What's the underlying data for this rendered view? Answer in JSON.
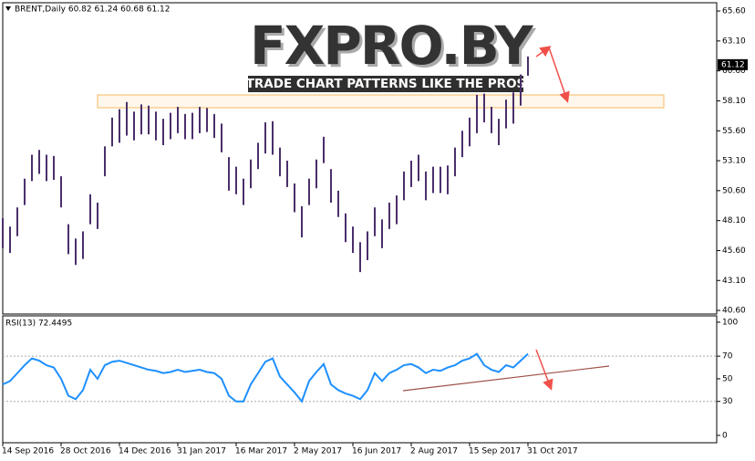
{
  "watermark": {
    "logo": "FXPRO.BY",
    "tagline": "TRADE CHART PATTERNS LIKE THE PROS"
  },
  "chart_data": [
    {
      "type": "ohlc",
      "title": "BRENT,Daily  60.82 61.24 60.68 61.12",
      "color": "#4a2f6b",
      "categories": [
        "14 Sep 2016",
        null,
        null,
        null,
        null,
        null,
        null,
        null,
        "28 Oct 2016",
        null,
        null,
        null,
        null,
        null,
        null,
        null,
        "14 Dec 2016",
        null,
        null,
        null,
        null,
        null,
        null,
        null,
        "31 Jan 2017",
        null,
        null,
        null,
        null,
        null,
        null,
        null,
        "16 Mar 2017",
        null,
        null,
        null,
        null,
        null,
        null,
        null,
        "2 May 2017",
        null,
        null,
        null,
        null,
        null,
        null,
        null,
        "16 Jun 2017",
        null,
        null,
        null,
        null,
        null,
        null,
        null,
        "2 Aug 2017",
        null,
        null,
        null,
        null,
        null,
        null,
        null,
        "15 Sep 2017",
        null,
        null,
        null,
        null,
        null,
        null,
        null,
        "31 Oct 2017"
      ],
      "high": [
        48.3,
        47.6,
        49.2,
        51.6,
        53.6,
        54.0,
        53.6,
        53.5,
        51.8,
        47.8,
        46.6,
        47.2,
        50.3,
        49.6,
        54.3,
        56.7,
        57.4,
        58.0,
        57.2,
        57.8,
        57.7,
        57.2,
        56.6,
        57.1,
        57.6,
        57.0,
        57.1,
        57.6,
        57.5,
        57.0,
        56.2,
        53.4,
        52.6,
        51.6,
        53.2,
        54.6,
        56.3,
        56.4,
        54.2,
        53.1,
        51.2,
        49.3,
        51.6,
        53.2,
        55.1,
        52.4,
        50.6,
        48.7,
        47.6,
        46.3,
        47.2,
        49.2,
        48.2,
        49.6,
        50.2,
        52.2,
        53.1,
        53.6,
        52.2,
        52.6,
        52.6,
        52.7,
        54.2,
        55.6,
        56.7,
        58.6,
        58.7,
        57.6,
        56.6,
        58.2,
        58.8,
        60.3,
        61.8
      ],
      "low": [
        45.8,
        45.4,
        46.8,
        49.4,
        51.4,
        52.0,
        51.4,
        51.5,
        49.2,
        45.3,
        44.4,
        44.9,
        47.8,
        47.4,
        51.8,
        54.3,
        54.6,
        55.2,
        54.8,
        55.3,
        55.3,
        54.8,
        54.4,
        54.9,
        55.4,
        54.9,
        54.9,
        55.4,
        55.5,
        55.0,
        53.8,
        50.6,
        50.3,
        49.4,
        50.8,
        52.4,
        53.7,
        53.6,
        51.8,
        50.9,
        48.8,
        46.7,
        49.4,
        50.8,
        52.9,
        49.6,
        48.4,
        46.3,
        45.4,
        43.8,
        44.8,
        46.8,
        45.8,
        47.4,
        47.8,
        49.8,
        50.9,
        51.4,
        49.8,
        50.4,
        50.4,
        50.3,
        51.8,
        53.4,
        54.3,
        55.4,
        56.3,
        55.4,
        54.4,
        55.8,
        56.2,
        57.7,
        60.2
      ],
      "ylim": [
        40.3,
        66.29
      ],
      "yticks": [
        {
          "value": 65.6,
          "label": "65.60"
        },
        {
          "value": 63.1,
          "label": "63.10"
        },
        {
          "value": 60.6,
          "label": "60.60"
        },
        {
          "value": 58.1,
          "label": "58.10"
        },
        {
          "value": 55.6,
          "label": "55.60"
        },
        {
          "value": 53.1,
          "label": "53.10"
        },
        {
          "value": 50.6,
          "label": "50.60"
        },
        {
          "value": 48.1,
          "label": "48.10"
        },
        {
          "value": 45.6,
          "label": "45.60"
        },
        {
          "value": 43.1,
          "label": "43.10"
        },
        {
          "value": 40.6,
          "label": "40.60"
        }
      ],
      "last_price": {
        "value": 61.12,
        "label": "61.12"
      }
    },
    {
      "type": "line",
      "title": "RSI(13) 72.4495",
      "color": "#1e90ff",
      "values": [
        45,
        48,
        55,
        62,
        68,
        66,
        62,
        60,
        50,
        35,
        32,
        40,
        58,
        50,
        62,
        65,
        66,
        64,
        62,
        60,
        58,
        57,
        55,
        56,
        58,
        56,
        57,
        58,
        56,
        55,
        50,
        35,
        30,
        30,
        45,
        55,
        65,
        68,
        52,
        45,
        38,
        30,
        48,
        56,
        63,
        45,
        40,
        37,
        35,
        32,
        40,
        55,
        48,
        55,
        58,
        62,
        63,
        60,
        55,
        58,
        57,
        60,
        62,
        66,
        68,
        72,
        62,
        58,
        56,
        62,
        60,
        66,
        72
      ],
      "ylim": [
        -6.5,
        105.6
      ],
      "yticks": [
        100,
        70,
        50,
        30,
        0
      ],
      "levels": [
        70,
        30
      ]
    }
  ]
}
